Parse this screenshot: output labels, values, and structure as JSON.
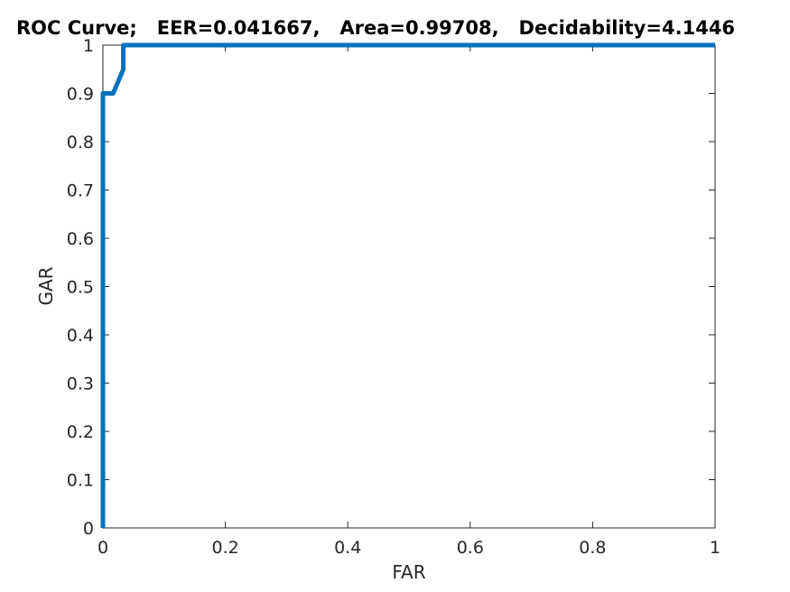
{
  "chart_data": {
    "type": "line",
    "title": "ROC Curve;   EER=0.041667,   Area=0.99708,   Decidability=4.1446",
    "xlabel": "FAR",
    "ylabel": "GAR",
    "xlim": [
      0,
      1
    ],
    "ylim": [
      0,
      1
    ],
    "x_ticks": [
      "0",
      "0.2",
      "0.4",
      "0.6",
      "0.8",
      "1"
    ],
    "y_ticks": [
      "0",
      "0.1",
      "0.2",
      "0.3",
      "0.4",
      "0.5",
      "0.6",
      "0.7",
      "0.8",
      "0.9",
      "1"
    ],
    "grid": false,
    "series": [
      {
        "color": "#0072bd",
        "x": [
          0,
          0,
          0.0167,
          0.0333,
          0.0333,
          1
        ],
        "y": [
          0,
          0.9,
          0.9,
          0.95,
          1.0,
          1.0
        ]
      }
    ]
  }
}
